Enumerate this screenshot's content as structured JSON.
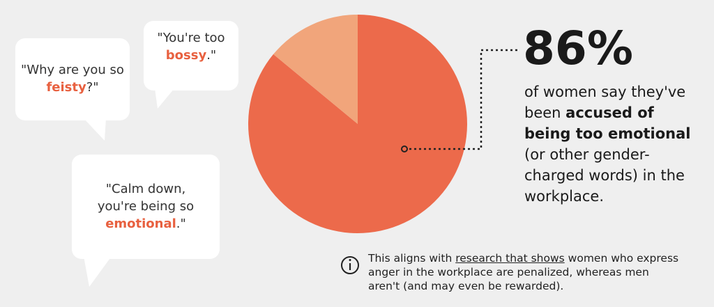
{
  "chart_data": {
    "type": "pie",
    "values": [
      86,
      14
    ],
    "colors": [
      "#ec6a4b",
      "#f1a57b"
    ],
    "value_labels": [
      "86%",
      null
    ],
    "callout": {
      "before": "of women say they've been ",
      "bold": "accused of being too emotional",
      "after": " (or other gender-charged words) in the workplace."
    },
    "quotes": [
      {
        "before": "\"Why are you so ",
        "highlight": "feisty",
        "after": "?\""
      },
      {
        "before": "\"You're too ",
        "highlight": "bossy",
        "after": ".\""
      },
      {
        "before": "\"Calm down, you're being so ",
        "highlight": "emotional",
        "after": ".\""
      }
    ],
    "note": {
      "before": "This aligns with ",
      "link": "research that shows",
      "after": " women who express anger in the workplace are penalized, whereas men aren't (and may even be rewarded)."
    }
  }
}
